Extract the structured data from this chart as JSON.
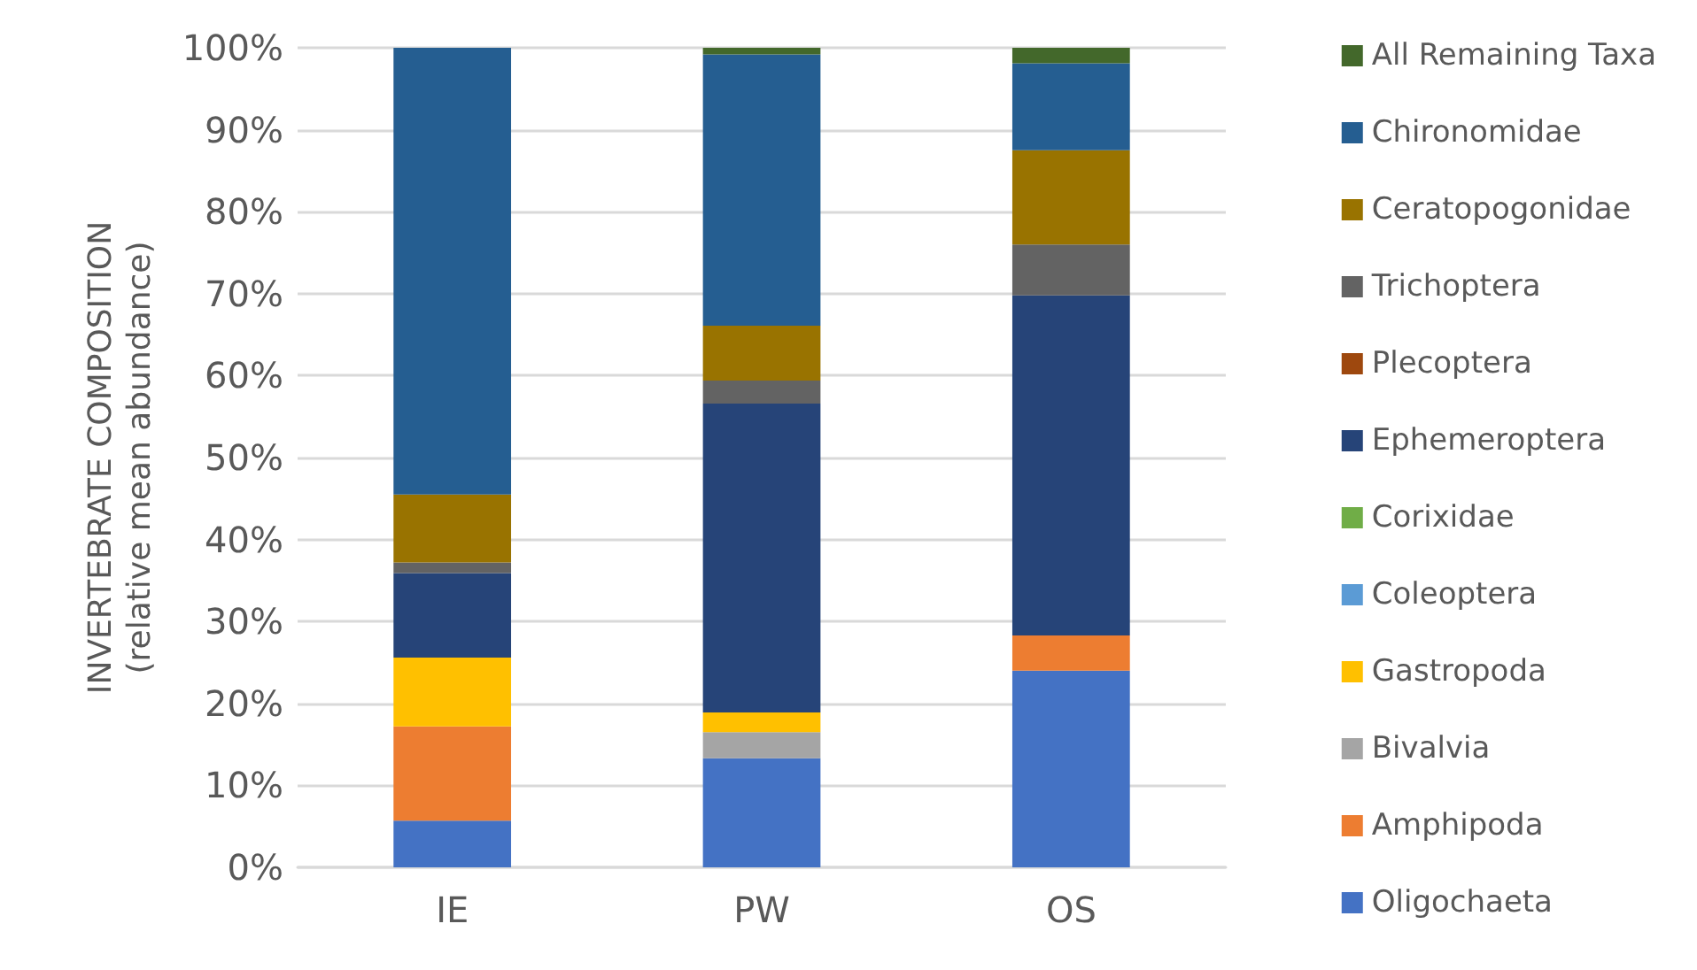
{
  "chart_data": {
    "type": "bar",
    "stacked": true,
    "ylabel": "INVERTEBRATE COMPOSITION\n(relative mean abundance)",
    "categories": [
      "IE",
      "PW",
      "OS"
    ],
    "series": [
      {
        "name": "Oligochaeta",
        "color": "#4472c4",
        "values": [
          5.7,
          13.3,
          24.0
        ]
      },
      {
        "name": "Amphipoda",
        "color": "#ed7d31",
        "values": [
          11.5,
          0,
          4.3
        ]
      },
      {
        "name": "Bivalvia",
        "color": "#a5a5a5",
        "values": [
          0,
          3.2,
          0
        ]
      },
      {
        "name": "Gastropoda",
        "color": "#ffc000",
        "values": [
          8.4,
          2.4,
          0
        ]
      },
      {
        "name": "Coleoptera",
        "color": "#5b9bd5",
        "values": [
          0,
          0,
          0
        ]
      },
      {
        "name": "Corixidae",
        "color": "#70ad47",
        "values": [
          0,
          0,
          0
        ]
      },
      {
        "name": "Ephemeroptera",
        "color": "#264478",
        "values": [
          10.3,
          37.7,
          41.5
        ]
      },
      {
        "name": "Plecoptera",
        "color": "#9e480e",
        "values": [
          0,
          0,
          0
        ]
      },
      {
        "name": "Trichoptera",
        "color": "#636363",
        "values": [
          1.3,
          2.8,
          6.2
        ]
      },
      {
        "name": "Ceratopogonidae",
        "color": "#997300",
        "values": [
          8.3,
          6.7,
          11.5
        ]
      },
      {
        "name": "Chironomidae",
        "color": "#255e91",
        "values": [
          54.5,
          33.1,
          10.6
        ]
      },
      {
        "name": "All Remaining Taxa",
        "color": "#43682b",
        "values": [
          0,
          0.8,
          1.9
        ]
      }
    ],
    "ylim": [
      0,
      100
    ],
    "yticks": [
      {
        "value": 0,
        "label": "0%"
      },
      {
        "value": 10,
        "label": "10%"
      },
      {
        "value": 20,
        "label": "20%"
      },
      {
        "value": 30,
        "label": "30%"
      },
      {
        "value": 40,
        "label": "40%"
      },
      {
        "value": 50,
        "label": "50%"
      },
      {
        "value": 60,
        "label": "60%"
      },
      {
        "value": 70,
        "label": "70%"
      },
      {
        "value": 80,
        "label": "80%"
      },
      {
        "value": 90,
        "label": "90%"
      },
      {
        "value": 100,
        "label": "100%"
      }
    ],
    "grid": "y",
    "legend": "right"
  }
}
